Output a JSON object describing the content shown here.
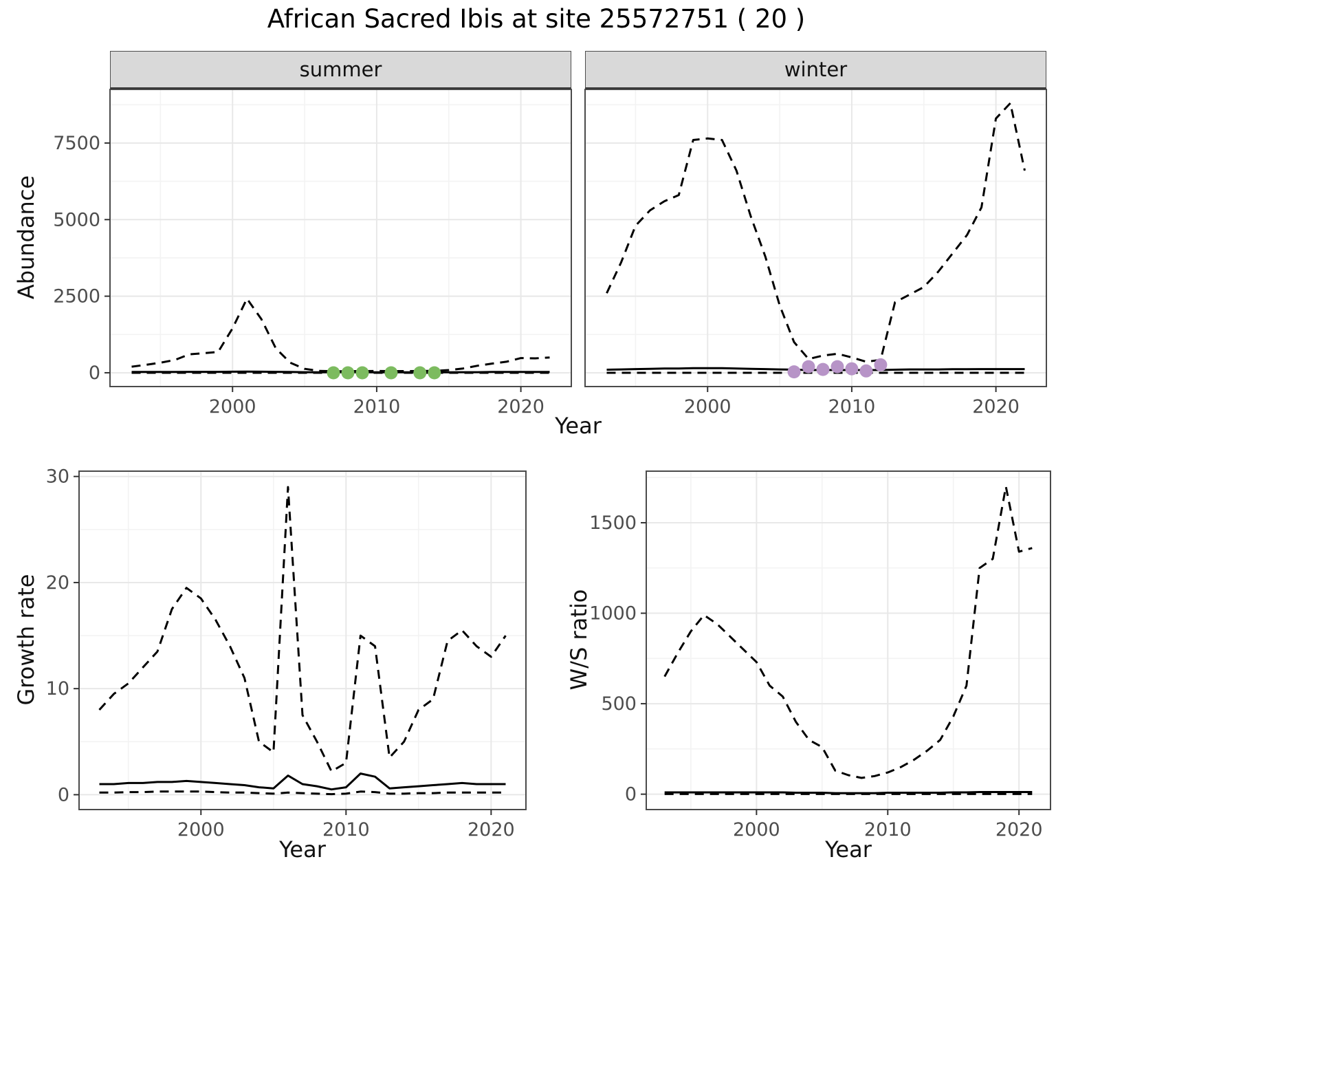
{
  "title": "African Sacred Ibis at site 25572751 ( 20 )",
  "facets": [
    {
      "label": "summer"
    },
    {
      "label": "winter"
    }
  ],
  "axis_titles": {
    "top_x": "Year",
    "top_y": "Abundance",
    "growth_y": "Growth rate",
    "growth_x": "Year",
    "ratio_y": "W/S ratio",
    "ratio_x": "Year"
  },
  "colors": {
    "summer_points": "#7cbb5f",
    "winter_points": "#b794c7",
    "line": "#000000",
    "grid_major": "#e8e8e8",
    "grid_minor": "#f3f3f3",
    "strip_fill": "#d9d9d9",
    "panel_border": "#4a4a4a",
    "tick_text": "#4d4d4d"
  },
  "chart_data": [
    {
      "type": "line",
      "name": "abundance-summer",
      "facet": "summer",
      "ylabel": "Abundance",
      "xlabel": "Year",
      "xlim": [
        1991.5,
        2023.5
      ],
      "ylim": [
        -450,
        9250
      ],
      "xticks": [
        2000,
        2010,
        2020
      ],
      "yticks": [
        0,
        2500,
        5000,
        7500
      ],
      "xticks_minor": [
        1995,
        2005,
        2015
      ],
      "yticks_minor": [
        1250,
        3750,
        6250,
        8750
      ],
      "ytick_labels": true,
      "x": [
        1993,
        1994,
        1995,
        1996,
        1997,
        1998,
        1999,
        2000,
        2001,
        2002,
        2003,
        2004,
        2005,
        2006,
        2007,
        2008,
        2009,
        2010,
        2011,
        2012,
        2013,
        2014,
        2015,
        2016,
        2017,
        2018,
        2019,
        2020,
        2021,
        2022
      ],
      "series": [
        {
          "name": "upper-ci",
          "style": "dashed",
          "values": [
            200,
            260,
            330,
            420,
            600,
            640,
            680,
            1450,
            2420,
            1750,
            800,
            330,
            130,
            60,
            50,
            50,
            55,
            60,
            55,
            55,
            60,
            60,
            90,
            140,
            230,
            300,
            360,
            480,
            470,
            500
          ]
        },
        {
          "name": "estimate",
          "style": "solid",
          "values": [
            25,
            25,
            25,
            25,
            30,
            30,
            30,
            35,
            40,
            35,
            30,
            25,
            20,
            15,
            15,
            15,
            15,
            15,
            15,
            15,
            15,
            15,
            15,
            20,
            20,
            25,
            25,
            25,
            25,
            25
          ]
        },
        {
          "name": "lower-ci",
          "style": "dashed",
          "values": [
            0,
            0,
            0,
            0,
            0,
            0,
            0,
            0,
            0,
            0,
            0,
            0,
            0,
            0,
            0,
            0,
            0,
            0,
            0,
            0,
            0,
            0,
            0,
            0,
            0,
            0,
            0,
            0,
            0,
            0
          ]
        }
      ],
      "points": {
        "name": "summer-observations",
        "color_key": "summer_points",
        "x": [
          2007,
          2008,
          2009,
          2011,
          2013,
          2014
        ],
        "y": [
          0,
          0,
          0,
          0,
          0,
          0
        ]
      }
    },
    {
      "type": "line",
      "name": "abundance-winter",
      "facet": "winter",
      "ylabel": "Abundance",
      "xlabel": "Year",
      "xlim": [
        1991.5,
        2023.5
      ],
      "ylim": [
        -450,
        9250
      ],
      "xticks": [
        2000,
        2010,
        2020
      ],
      "yticks": [
        0,
        2500,
        5000,
        7500
      ],
      "xticks_minor": [
        1995,
        2005,
        2015
      ],
      "yticks_minor": [
        1250,
        3750,
        6250,
        8750
      ],
      "ytick_labels": false,
      "x": [
        1993,
        1994,
        1995,
        1996,
        1997,
        1998,
        1999,
        2000,
        2001,
        2002,
        2003,
        2004,
        2005,
        2006,
        2007,
        2008,
        2009,
        2010,
        2011,
        2012,
        2013,
        2014,
        2015,
        2016,
        2017,
        2018,
        2019,
        2020,
        2021,
        2022
      ],
      "series": [
        {
          "name": "upper-ci",
          "style": "dashed",
          "values": [
            2600,
            3600,
            4800,
            5300,
            5600,
            5800,
            7600,
            7650,
            7600,
            6600,
            5100,
            3800,
            2200,
            1000,
            450,
            560,
            620,
            500,
            360,
            420,
            2300,
            2550,
            2800,
            3300,
            3900,
            4500,
            5400,
            8300,
            8800,
            6600
          ]
        },
        {
          "name": "estimate",
          "style": "solid",
          "values": [
            100,
            110,
            120,
            130,
            140,
            140,
            150,
            150,
            150,
            140,
            130,
            120,
            110,
            100,
            90,
            90,
            90,
            90,
            90,
            90,
            100,
            110,
            110,
            110,
            115,
            115,
            120,
            120,
            120,
            120
          ]
        },
        {
          "name": "lower-ci",
          "style": "dashed",
          "values": [
            0,
            0,
            0,
            0,
            0,
            0,
            0,
            0,
            0,
            0,
            0,
            0,
            0,
            0,
            0,
            0,
            0,
            0,
            0,
            0,
            0,
            0,
            0,
            0,
            0,
            0,
            0,
            0,
            0,
            0
          ]
        }
      ],
      "points": {
        "name": "winter-observations",
        "color_key": "winter_points",
        "x": [
          2006,
          2007,
          2008,
          2009,
          2010,
          2011,
          2012
        ],
        "y": [
          30,
          200,
          110,
          200,
          130,
          60,
          260
        ]
      }
    },
    {
      "type": "line",
      "name": "growth-rate",
      "facet": null,
      "ylabel": "Growth rate",
      "xlabel": "Year",
      "xlim": [
        1991.6,
        2022.4
      ],
      "ylim": [
        -1.4,
        30.5
      ],
      "xticks": [
        2000,
        2010,
        2020
      ],
      "yticks": [
        0,
        10,
        20,
        30
      ],
      "xticks_minor": [
        1995,
        2005,
        2015
      ],
      "yticks_minor": [
        5,
        15,
        25
      ],
      "ytick_labels": true,
      "x": [
        1993,
        1994,
        1995,
        1996,
        1997,
        1998,
        1999,
        2000,
        2001,
        2002,
        2003,
        2004,
        2005,
        2006,
        2007,
        2008,
        2009,
        2010,
        2011,
        2012,
        2013,
        2014,
        2015,
        2016,
        2017,
        2018,
        2019,
        2020,
        2021
      ],
      "series": [
        {
          "name": "upper-ci",
          "style": "dashed",
          "values": [
            8,
            9.5,
            10.5,
            12,
            13.5,
            17.5,
            19.5,
            18.5,
            16.5,
            14,
            11,
            5,
            4,
            29,
            7.5,
            5,
            2.2,
            3,
            15,
            14,
            3.5,
            5,
            8,
            9,
            14.5,
            15.5,
            14,
            13,
            15
          ]
        },
        {
          "name": "estimate",
          "style": "solid",
          "values": [
            1.0,
            1.0,
            1.1,
            1.1,
            1.2,
            1.2,
            1.3,
            1.2,
            1.1,
            1.0,
            0.9,
            0.7,
            0.6,
            1.8,
            1.0,
            0.8,
            0.5,
            0.7,
            2.0,
            1.7,
            0.6,
            0.7,
            0.8,
            0.9,
            1.0,
            1.1,
            1.0,
            1.0,
            1.0
          ]
        },
        {
          "name": "lower-ci",
          "style": "dashed",
          "values": [
            0.2,
            0.2,
            0.25,
            0.25,
            0.3,
            0.3,
            0.3,
            0.3,
            0.25,
            0.2,
            0.2,
            0.15,
            0.1,
            0.2,
            0.15,
            0.1,
            0.05,
            0.1,
            0.3,
            0.25,
            0.1,
            0.1,
            0.15,
            0.15,
            0.2,
            0.2,
            0.2,
            0.2,
            0.2
          ]
        }
      ]
    },
    {
      "type": "line",
      "name": "ws-ratio",
      "facet": null,
      "ylabel": "W/S ratio",
      "xlabel": "Year",
      "xlim": [
        1991.6,
        2022.4
      ],
      "ylim": [
        -85,
        1785
      ],
      "xticks": [
        2000,
        2010,
        2020
      ],
      "yticks": [
        0,
        500,
        1000,
        1500
      ],
      "xticks_minor": [
        1995,
        2005,
        2015
      ],
      "yticks_minor": [
        250,
        750,
        1250,
        1750
      ],
      "ytick_labels": true,
      "x": [
        1993,
        1994,
        1995,
        1996,
        1997,
        1998,
        1999,
        2000,
        2001,
        2002,
        2003,
        2004,
        2005,
        2006,
        2007,
        2008,
        2009,
        2010,
        2011,
        2012,
        2013,
        2014,
        2015,
        2016,
        2017,
        2018,
        2019,
        2020,
        2021
      ],
      "series": [
        {
          "name": "upper-ci",
          "style": "dashed",
          "values": [
            650,
            780,
            900,
            990,
            940,
            870,
            800,
            730,
            600,
            540,
            400,
            300,
            260,
            130,
            105,
            90,
            100,
            120,
            150,
            190,
            240,
            300,
            430,
            600,
            1250,
            1300,
            1700,
            1340,
            1360
          ]
        },
        {
          "name": "estimate",
          "style": "solid",
          "values": [
            10,
            10,
            10,
            10,
            10,
            10,
            10,
            10,
            10,
            10,
            8,
            8,
            8,
            6,
            6,
            6,
            6,
            8,
            8,
            8,
            8,
            8,
            10,
            10,
            12,
            12,
            12,
            12,
            12
          ]
        },
        {
          "name": "lower-ci",
          "style": "dashed",
          "values": [
            1,
            1,
            1,
            1,
            1,
            1,
            1,
            1,
            1,
            1,
            1,
            1,
            1,
            1,
            1,
            1,
            1,
            1,
            1,
            1,
            1,
            1,
            1,
            1,
            1,
            1,
            1,
            1,
            1
          ]
        }
      ]
    }
  ]
}
